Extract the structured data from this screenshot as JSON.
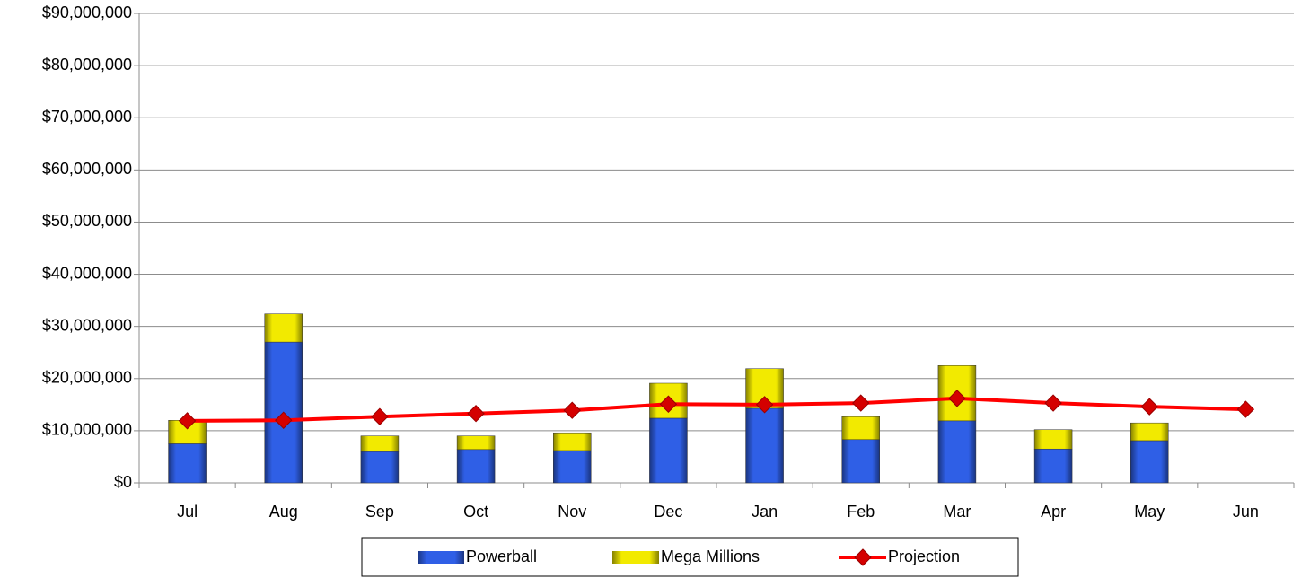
{
  "chart_data": {
    "type": "bar",
    "stacked": true,
    "categories": [
      "Jul",
      "Aug",
      "Sep",
      "Oct",
      "Nov",
      "Dec",
      "Jan",
      "Feb",
      "Mar",
      "Apr",
      "May",
      "Jun"
    ],
    "series": [
      {
        "name": "Powerball",
        "type": "bar",
        "color": "#2f5fe6",
        "values": [
          7500000,
          27000000,
          6000000,
          6400000,
          6200000,
          12400000,
          14300000,
          8300000,
          11900000,
          6500000,
          8100000,
          null
        ]
      },
      {
        "name": "Mega Millions",
        "type": "bar",
        "color": "#f2ea00",
        "values": [
          4500000,
          5400000,
          3000000,
          2600000,
          3400000,
          6700000,
          7600000,
          4400000,
          10600000,
          3700000,
          3400000,
          null
        ]
      },
      {
        "name": "Projection",
        "type": "line",
        "color": "#ff0000",
        "values": [
          11900000,
          12000000,
          12700000,
          13300000,
          13900000,
          15100000,
          15000000,
          15300000,
          16200000,
          15300000,
          14600000,
          14100000
        ]
      }
    ],
    "ylim": [
      0,
      90000000
    ],
    "yticks": [
      {
        "value": 0,
        "label": "$0"
      },
      {
        "value": 10000000,
        "label": "$10,000,000"
      },
      {
        "value": 20000000,
        "label": "$20,000,000"
      },
      {
        "value": 30000000,
        "label": "$30,000,000"
      },
      {
        "value": 40000000,
        "label": "$40,000,000"
      },
      {
        "value": 50000000,
        "label": "$50,000,000"
      },
      {
        "value": 60000000,
        "label": "$60,000,000"
      },
      {
        "value": 70000000,
        "label": "$70,000,000"
      },
      {
        "value": 80000000,
        "label": "$80,000,000"
      },
      {
        "value": 90000000,
        "label": "$90,000,000"
      }
    ],
    "grid": true,
    "legend": "bottom"
  }
}
